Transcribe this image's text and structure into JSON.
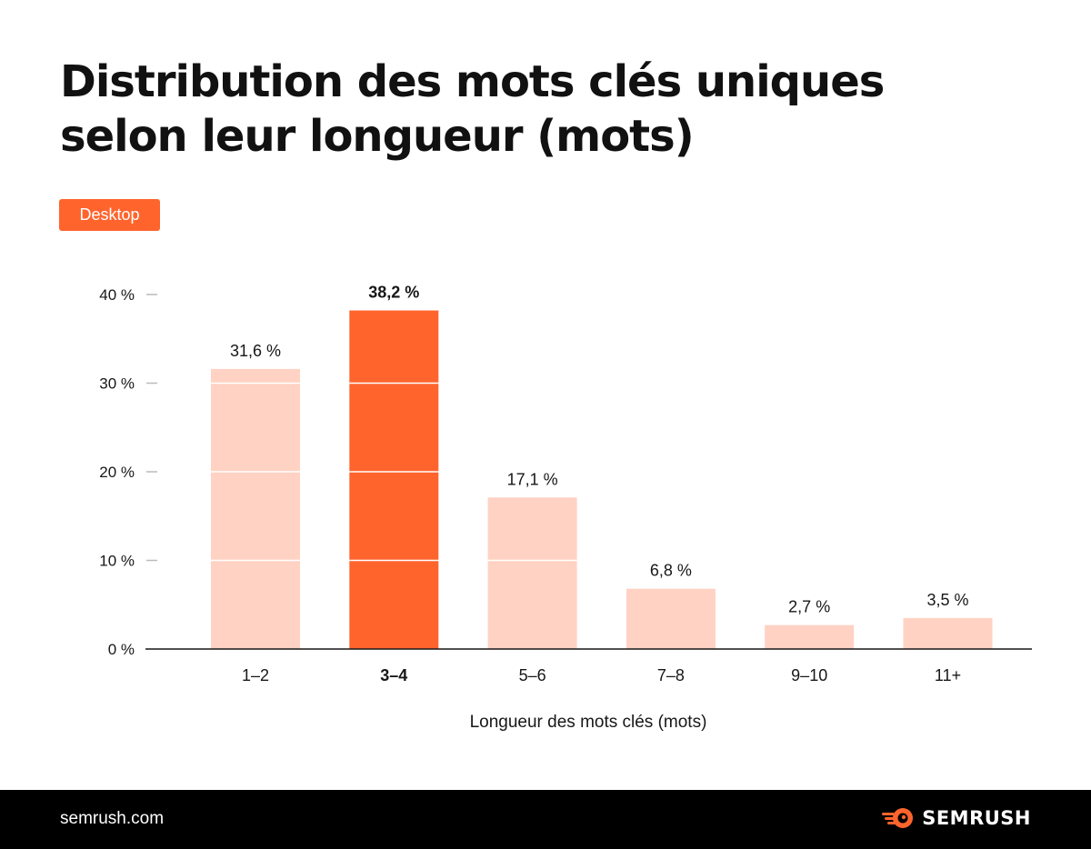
{
  "title": "Distribution des mots clés uniques selon leur longueur (mots)",
  "badge": {
    "label": "Desktop",
    "color": "#ff642d"
  },
  "colors": {
    "highlight": "#ff642d",
    "bar": "#ffd2c3",
    "axis": "#171717",
    "tick_mark": "#bbbbbb"
  },
  "chart_data": {
    "type": "bar",
    "title": "Distribution des mots clés uniques selon leur longueur (mots)",
    "xlabel": "Longueur des mots clés (mots)",
    "ylabel": "",
    "categories": [
      "1–2",
      "3–4",
      "5–6",
      "7–8",
      "9–10",
      "11+"
    ],
    "values": [
      31.6,
      38.2,
      17.1,
      6.8,
      2.7,
      3.5
    ],
    "value_labels": [
      "31,6 %",
      "38,2 %",
      "17,1 %",
      "6,8 %",
      "2,7 %",
      "3,5 %"
    ],
    "highlight_index": 1,
    "ylim": [
      0,
      40
    ],
    "yticks": [
      0,
      10,
      20,
      30,
      40
    ],
    "ytick_labels": [
      "0 %",
      "10 %",
      "20 %",
      "30 %",
      "40 %"
    ],
    "grid": false,
    "series": [
      {
        "name": "Desktop",
        "values": [
          31.6,
          38.2,
          17.1,
          6.8,
          2.7,
          3.5
        ]
      }
    ]
  },
  "footer": {
    "url": "semrush.com",
    "brand": "SEMRUSH",
    "brand_icon": "semrush-fireball-icon"
  }
}
